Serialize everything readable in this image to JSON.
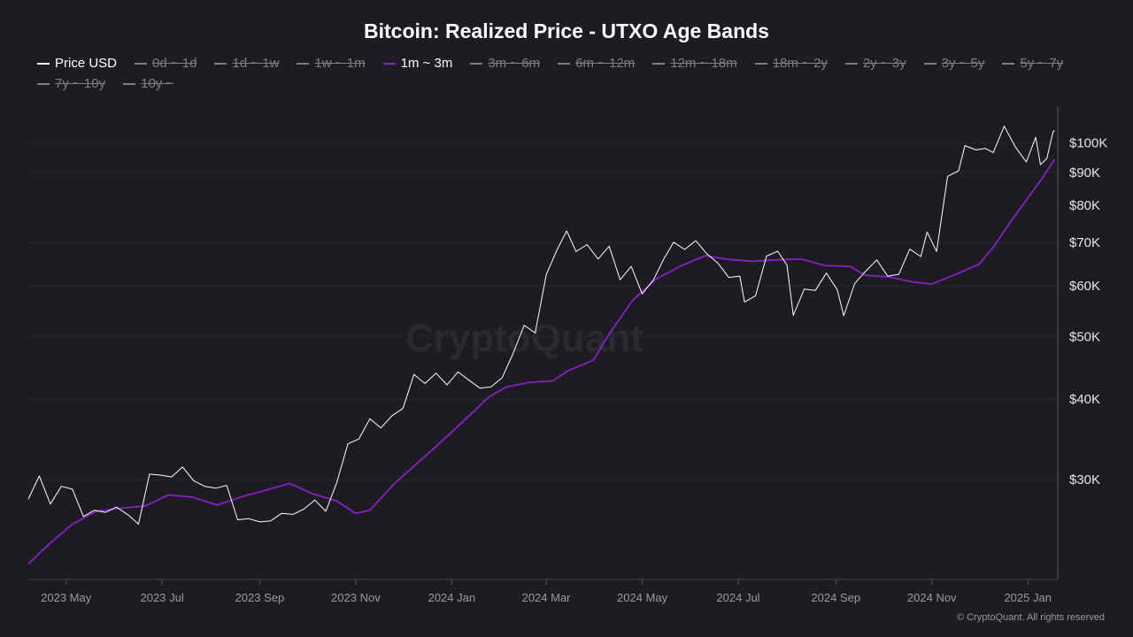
{
  "title": "Bitcoin: Realized Price - UTXO Age Bands",
  "watermark": "CryptoQuant",
  "copyright": "© CryptoQuant. All rights reserved",
  "legend": [
    {
      "label": "Price USD",
      "enabled": true,
      "color": "#ffffff"
    },
    {
      "label": "0d ~ 1d",
      "enabled": false
    },
    {
      "label": "1d ~ 1w",
      "enabled": false
    },
    {
      "label": "1w ~ 1m",
      "enabled": false
    },
    {
      "label": "1m ~ 3m",
      "enabled": true,
      "color": "#8a1fc4"
    },
    {
      "label": "3m ~ 6m",
      "enabled": false
    },
    {
      "label": "6m ~ 12m",
      "enabled": false
    },
    {
      "label": "12m ~ 18m",
      "enabled": false
    },
    {
      "label": "18m ~ 2y",
      "enabled": false
    },
    {
      "label": "2y ~ 3y",
      "enabled": false
    },
    {
      "label": "3y ~ 5y",
      "enabled": false
    },
    {
      "label": "5y ~ 7y",
      "enabled": false
    },
    {
      "label": "7y ~ 10y",
      "enabled": false
    },
    {
      "label": "10y ~",
      "enabled": false
    }
  ],
  "chart_data": {
    "type": "line",
    "title": "Bitcoin: Realized Price - UTXO Age Bands",
    "y_scale": "log",
    "ylim": [
      21000,
      114000
    ],
    "xlim": [
      "2023-04-07",
      "2025-01-20"
    ],
    "grid": true,
    "legend_placement": "top",
    "y_ticks": [
      {
        "value": 30000,
        "label": "$30K"
      },
      {
        "value": 40000,
        "label": "$40K"
      },
      {
        "value": 50000,
        "label": "$50K"
      },
      {
        "value": 60000,
        "label": "$60K"
      },
      {
        "value": 70000,
        "label": "$70K"
      },
      {
        "value": 80000,
        "label": "$80K"
      },
      {
        "value": 90000,
        "label": "$90K"
      },
      {
        "value": 100000,
        "label": "$100K"
      }
    ],
    "x_ticks": [
      {
        "date": "2023-05-01",
        "label": "2023 May"
      },
      {
        "date": "2023-07-01",
        "label": "2023 Jul"
      },
      {
        "date": "2023-09-01",
        "label": "2023 Sep"
      },
      {
        "date": "2023-11-01",
        "label": "2023 Nov"
      },
      {
        "date": "2024-01-01",
        "label": "2024 Jan"
      },
      {
        "date": "2024-03-01",
        "label": "2024 Mar"
      },
      {
        "date": "2024-05-01",
        "label": "2024 May"
      },
      {
        "date": "2024-07-01",
        "label": "2024 Jul"
      },
      {
        "date": "2024-09-01",
        "label": "2024 Sep"
      },
      {
        "date": "2024-11-01",
        "label": "2024 Nov"
      },
      {
        "date": "2025-01-01",
        "label": "2025 Jan"
      }
    ],
    "series": [
      {
        "name": "Price USD",
        "color": "#ffffff",
        "points": [
          [
            "2023-04-07",
            28000
          ],
          [
            "2023-04-14",
            30400
          ],
          [
            "2023-04-21",
            27500
          ],
          [
            "2023-04-28",
            29300
          ],
          [
            "2023-05-05",
            29000
          ],
          [
            "2023-05-12",
            26300
          ],
          [
            "2023-05-19",
            26900
          ],
          [
            "2023-05-26",
            26700
          ],
          [
            "2023-06-02",
            27200
          ],
          [
            "2023-06-09",
            26500
          ],
          [
            "2023-06-16",
            25600
          ],
          [
            "2023-06-23",
            30600
          ],
          [
            "2023-06-30",
            30500
          ],
          [
            "2023-07-07",
            30300
          ],
          [
            "2023-07-14",
            31400
          ],
          [
            "2023-07-21",
            29900
          ],
          [
            "2023-07-28",
            29300
          ],
          [
            "2023-08-04",
            29100
          ],
          [
            "2023-08-11",
            29400
          ],
          [
            "2023-08-18",
            26000
          ],
          [
            "2023-08-25",
            26100
          ],
          [
            "2023-09-01",
            25800
          ],
          [
            "2023-09-08",
            25900
          ],
          [
            "2023-09-15",
            26600
          ],
          [
            "2023-09-22",
            26500
          ],
          [
            "2023-09-29",
            27000
          ],
          [
            "2023-10-06",
            27900
          ],
          [
            "2023-10-13",
            26800
          ],
          [
            "2023-10-20",
            29700
          ],
          [
            "2023-10-27",
            34100
          ],
          [
            "2023-11-03",
            34700
          ],
          [
            "2023-11-10",
            37300
          ],
          [
            "2023-11-17",
            36100
          ],
          [
            "2023-11-24",
            37700
          ],
          [
            "2023-12-01",
            38700
          ],
          [
            "2023-12-08",
            43700
          ],
          [
            "2023-12-15",
            42300
          ],
          [
            "2023-12-22",
            43900
          ],
          [
            "2023-12-29",
            42100
          ],
          [
            "2024-01-05",
            44100
          ],
          [
            "2024-01-12",
            42800
          ],
          [
            "2024-01-19",
            41600
          ],
          [
            "2024-01-26",
            41800
          ],
          [
            "2024-02-02",
            43200
          ],
          [
            "2024-02-09",
            47100
          ],
          [
            "2024-02-16",
            52100
          ],
          [
            "2024-02-23",
            50700
          ],
          [
            "2024-03-01",
            62400
          ],
          [
            "2024-03-08",
            68300
          ],
          [
            "2024-03-14",
            73000
          ],
          [
            "2024-03-20",
            67800
          ],
          [
            "2024-03-27",
            69500
          ],
          [
            "2024-04-03",
            66000
          ],
          [
            "2024-04-10",
            69100
          ],
          [
            "2024-04-17",
            61300
          ],
          [
            "2024-04-24",
            64300
          ],
          [
            "2024-05-01",
            58300
          ],
          [
            "2024-05-08",
            61200
          ],
          [
            "2024-05-15",
            66200
          ],
          [
            "2024-05-21",
            70100
          ],
          [
            "2024-05-28",
            68300
          ],
          [
            "2024-06-04",
            70500
          ],
          [
            "2024-06-11",
            67300
          ],
          [
            "2024-06-18",
            65100
          ],
          [
            "2024-06-25",
            61800
          ],
          [
            "2024-07-02",
            62100
          ],
          [
            "2024-07-05",
            56600
          ],
          [
            "2024-07-12",
            57900
          ],
          [
            "2024-07-19",
            66700
          ],
          [
            "2024-07-26",
            67900
          ],
          [
            "2024-08-01",
            64600
          ],
          [
            "2024-08-05",
            54000
          ],
          [
            "2024-08-12",
            59300
          ],
          [
            "2024-08-19",
            59000
          ],
          [
            "2024-08-26",
            62800
          ],
          [
            "2024-09-02",
            59100
          ],
          [
            "2024-09-06",
            53900
          ],
          [
            "2024-09-13",
            60500
          ],
          [
            "2024-09-20",
            63200
          ],
          [
            "2024-09-27",
            65800
          ],
          [
            "2024-10-04",
            62100
          ],
          [
            "2024-10-11",
            62500
          ],
          [
            "2024-10-18",
            68400
          ],
          [
            "2024-10-25",
            66600
          ],
          [
            "2024-10-29",
            72700
          ],
          [
            "2024-11-04",
            67800
          ],
          [
            "2024-11-11",
            88700
          ],
          [
            "2024-11-18",
            90500
          ],
          [
            "2024-11-22",
            99000
          ],
          [
            "2024-11-29",
            97500
          ],
          [
            "2024-12-05",
            98000
          ],
          [
            "2024-12-10",
            96600
          ],
          [
            "2024-12-17",
            106100
          ],
          [
            "2024-12-24",
            98600
          ],
          [
            "2024-12-31",
            93400
          ],
          [
            "2025-01-06",
            102000
          ],
          [
            "2025-01-09",
            92500
          ],
          [
            "2025-01-13",
            94500
          ],
          [
            "2025-01-17",
            104000
          ],
          [
            "2025-01-18",
            104500
          ]
        ]
      },
      {
        "name": "1m ~ 3m",
        "color": "#8a1fc4",
        "points": [
          [
            "2023-04-07",
            22200
          ],
          [
            "2023-04-20",
            23800
          ],
          [
            "2023-05-05",
            25600
          ],
          [
            "2023-05-20",
            26800
          ],
          [
            "2023-06-05",
            27100
          ],
          [
            "2023-06-20",
            27300
          ],
          [
            "2023-07-05",
            28400
          ],
          [
            "2023-07-20",
            28200
          ],
          [
            "2023-08-05",
            27400
          ],
          [
            "2023-08-20",
            28200
          ],
          [
            "2023-09-05",
            28900
          ],
          [
            "2023-09-20",
            29600
          ],
          [
            "2023-10-05",
            28500
          ],
          [
            "2023-10-20",
            27800
          ],
          [
            "2023-11-01",
            26600
          ],
          [
            "2023-11-10",
            26900
          ],
          [
            "2023-11-25",
            29500
          ],
          [
            "2023-12-10",
            31800
          ],
          [
            "2023-12-25",
            34300
          ],
          [
            "2024-01-10",
            37300
          ],
          [
            "2024-01-25",
            40400
          ],
          [
            "2024-02-05",
            41800
          ],
          [
            "2024-02-20",
            42500
          ],
          [
            "2024-03-05",
            42700
          ],
          [
            "2024-03-15",
            44300
          ],
          [
            "2024-03-31",
            46000
          ],
          [
            "2024-04-10",
            50500
          ],
          [
            "2024-04-25",
            57000
          ],
          [
            "2024-05-10",
            61500
          ],
          [
            "2024-05-25",
            64300
          ],
          [
            "2024-06-10",
            66800
          ],
          [
            "2024-06-25",
            65900
          ],
          [
            "2024-07-10",
            65500
          ],
          [
            "2024-07-25",
            65800
          ],
          [
            "2024-08-10",
            66000
          ],
          [
            "2024-08-25",
            64500
          ],
          [
            "2024-09-10",
            64300
          ],
          [
            "2024-09-20",
            62300
          ],
          [
            "2024-10-05",
            61900
          ],
          [
            "2024-10-20",
            60800
          ],
          [
            "2024-11-01",
            60400
          ],
          [
            "2024-11-15",
            62300
          ],
          [
            "2024-12-01",
            64800
          ],
          [
            "2024-12-10",
            68800
          ],
          [
            "2024-12-20",
            74800
          ],
          [
            "2024-12-31",
            81500
          ],
          [
            "2025-01-10",
            88000
          ],
          [
            "2025-01-18",
            94200
          ]
        ]
      }
    ]
  }
}
